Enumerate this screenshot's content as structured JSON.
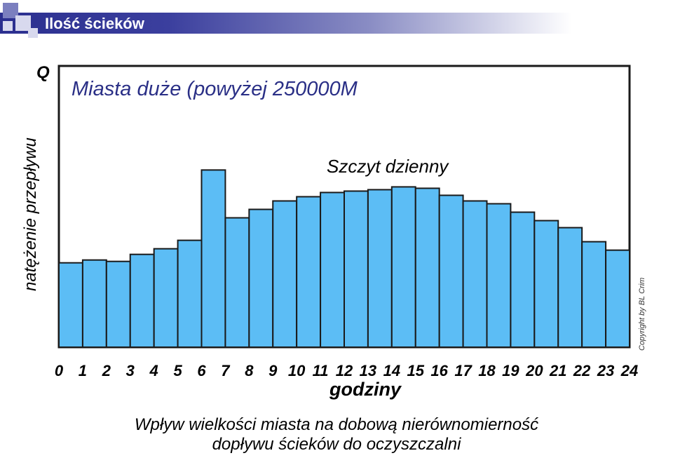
{
  "slide": {
    "title": "Ilość ścieków",
    "copyright": "Copyright by BL Crim",
    "caption_line1": "Wpływ wielkości miasta na dobową nierównomierność",
    "caption_line2": "dopływu ścieków do oczyszczalni"
  },
  "colors": {
    "bar_fill": "#5cbdf5",
    "bar_stroke": "#1a1a1a",
    "header_band": "#2b2f8f"
  },
  "chart_data": {
    "type": "bar",
    "title": "Miasta duże (powyżej 250000M",
    "annotation": "Szczyt dzienny",
    "ylabel": "natężenie przepływu",
    "ylabel_symbol": "Q",
    "xlabel": "godziny",
    "x_ticks": [
      "0",
      "1",
      "2",
      "3",
      "4",
      "5",
      "6",
      "7",
      "8",
      "9",
      "10",
      "11",
      "12",
      "13",
      "14",
      "15",
      "16",
      "17",
      "18",
      "19",
      "20",
      "21",
      "22",
      "23",
      "24"
    ],
    "values": [
      30,
      31,
      30.5,
      33,
      35,
      38,
      63,
      46,
      49,
      52,
      53.5,
      55,
      55.5,
      56,
      57,
      56.5,
      54,
      52,
      51,
      48,
      45,
      42.5,
      37.5,
      34.5
    ],
    "ylim": [
      0,
      100
    ],
    "grid": false,
    "legend": "none"
  }
}
